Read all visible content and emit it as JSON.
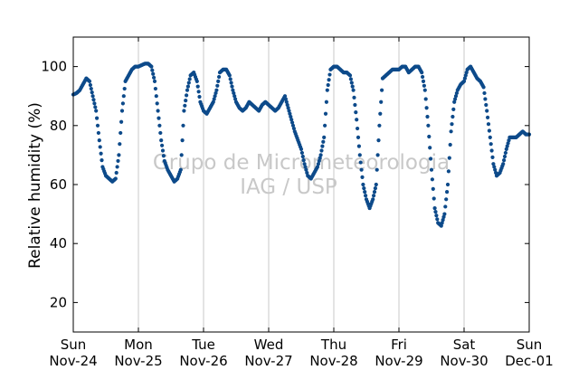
{
  "chart_data": {
    "type": "scatter",
    "title": "",
    "xlabel": "",
    "ylabel": "Relative humidity (%)",
    "watermark": [
      "Grupo de Micrometeorologia",
      "IAG / USP"
    ],
    "xlim": [
      "Nov-24",
      "Dec-01"
    ],
    "ylim": [
      10,
      110
    ],
    "yticks": [
      20,
      40,
      60,
      80,
      100
    ],
    "x_ticks": [
      {
        "day": "Sun",
        "date": "Nov-24"
      },
      {
        "day": "Mon",
        "date": "Nov-25"
      },
      {
        "day": "Tue",
        "date": "Nov-26"
      },
      {
        "day": "Wed",
        "date": "Nov-27"
      },
      {
        "day": "Thu",
        "date": "Nov-28"
      },
      {
        "day": "Fri",
        "date": "Nov-29"
      },
      {
        "day": "Sat",
        "date": "Nov-30"
      },
      {
        "day": "Sun",
        "date": "Dec-01"
      }
    ],
    "grid": "vertical",
    "marker_color": "#0d4a8a",
    "series": [
      {
        "x_unit": "days from Nov-24 00:00",
        "points": [
          [
            0.0,
            90.5
          ],
          [
            0.05,
            91
          ],
          [
            0.1,
            92
          ],
          [
            0.15,
            94
          ],
          [
            0.2,
            96
          ],
          [
            0.25,
            95
          ],
          [
            0.3,
            90
          ],
          [
            0.35,
            85
          ],
          [
            0.4,
            75
          ],
          [
            0.45,
            66
          ],
          [
            0.5,
            63
          ],
          [
            0.55,
            62
          ],
          [
            0.6,
            61
          ],
          [
            0.65,
            62
          ],
          [
            0.7,
            70
          ],
          [
            0.75,
            85
          ],
          [
            0.8,
            95
          ],
          [
            0.85,
            97
          ],
          [
            0.9,
            99
          ],
          [
            0.95,
            100
          ],
          [
            1.0,
            100
          ],
          [
            1.05,
            100.5
          ],
          [
            1.1,
            101
          ],
          [
            1.15,
            101
          ],
          [
            1.2,
            100
          ],
          [
            1.25,
            95
          ],
          [
            1.3,
            85
          ],
          [
            1.35,
            75
          ],
          [
            1.4,
            68
          ],
          [
            1.45,
            65
          ],
          [
            1.5,
            63
          ],
          [
            1.55,
            61
          ],
          [
            1.6,
            62
          ],
          [
            1.65,
            65
          ],
          [
            1.7,
            85
          ],
          [
            1.75,
            92
          ],
          [
            1.8,
            97
          ],
          [
            1.85,
            98
          ],
          [
            1.9,
            95
          ],
          [
            1.95,
            88
          ],
          [
            2.0,
            85
          ],
          [
            2.05,
            84
          ],
          [
            2.1,
            86
          ],
          [
            2.15,
            88
          ],
          [
            2.2,
            92
          ],
          [
            2.25,
            98
          ],
          [
            2.3,
            99
          ],
          [
            2.35,
            99
          ],
          [
            2.4,
            97
          ],
          [
            2.45,
            92
          ],
          [
            2.5,
            88
          ],
          [
            2.55,
            86
          ],
          [
            2.6,
            85
          ],
          [
            2.65,
            86
          ],
          [
            2.7,
            88
          ],
          [
            2.75,
            87
          ],
          [
            2.8,
            86
          ],
          [
            2.85,
            85
          ],
          [
            2.9,
            87
          ],
          [
            2.95,
            88
          ],
          [
            3.0,
            87
          ],
          [
            3.05,
            86
          ],
          [
            3.1,
            85
          ],
          [
            3.15,
            86
          ],
          [
            3.2,
            88
          ],
          [
            3.25,
            90
          ],
          [
            3.3,
            86
          ],
          [
            3.35,
            82
          ],
          [
            3.4,
            78
          ],
          [
            3.45,
            75
          ],
          [
            3.5,
            72
          ],
          [
            3.55,
            67
          ],
          [
            3.6,
            63
          ],
          [
            3.65,
            62
          ],
          [
            3.7,
            64
          ],
          [
            3.75,
            66
          ],
          [
            3.8,
            70
          ],
          [
            3.85,
            76
          ],
          [
            3.9,
            92
          ],
          [
            3.95,
            99
          ],
          [
            4.0,
            100
          ],
          [
            4.05,
            100
          ],
          [
            4.1,
            99
          ],
          [
            4.15,
            98
          ],
          [
            4.2,
            98
          ],
          [
            4.25,
            97
          ],
          [
            4.3,
            92
          ],
          [
            4.35,
            82
          ],
          [
            4.4,
            70
          ],
          [
            4.45,
            60
          ],
          [
            4.5,
            55
          ],
          [
            4.55,
            52
          ],
          [
            4.6,
            55
          ],
          [
            4.65,
            60
          ],
          [
            4.7,
            80
          ],
          [
            4.75,
            96
          ],
          [
            4.8,
            97
          ],
          [
            4.85,
            98
          ],
          [
            4.9,
            99
          ],
          [
            4.95,
            99
          ],
          [
            5.0,
            99
          ],
          [
            5.05,
            100
          ],
          [
            5.1,
            100
          ],
          [
            5.15,
            98
          ],
          [
            5.2,
            99
          ],
          [
            5.25,
            100
          ],
          [
            5.3,
            100
          ],
          [
            5.35,
            98
          ],
          [
            5.4,
            92
          ],
          [
            5.45,
            80
          ],
          [
            5.5,
            65
          ],
          [
            5.55,
            52
          ],
          [
            5.6,
            47
          ],
          [
            5.65,
            46
          ],
          [
            5.7,
            50
          ],
          [
            5.75,
            60
          ],
          [
            5.8,
            78
          ],
          [
            5.85,
            88
          ],
          [
            5.9,
            92
          ],
          [
            5.95,
            94
          ],
          [
            6.0,
            95
          ],
          [
            6.05,
            99
          ],
          [
            6.1,
            100
          ],
          [
            6.15,
            98
          ],
          [
            6.2,
            96
          ],
          [
            6.25,
            95
          ],
          [
            6.3,
            93
          ],
          [
            6.35,
            85
          ],
          [
            6.4,
            76
          ],
          [
            6.45,
            67
          ],
          [
            6.5,
            63
          ],
          [
            6.55,
            64
          ],
          [
            6.6,
            67
          ],
          [
            6.65,
            72
          ],
          [
            6.7,
            76
          ],
          [
            6.75,
            76
          ],
          [
            6.8,
            76
          ],
          [
            6.85,
            77
          ],
          [
            6.9,
            78
          ],
          [
            6.95,
            77
          ],
          [
            7.0,
            77
          ]
        ]
      }
    ]
  }
}
